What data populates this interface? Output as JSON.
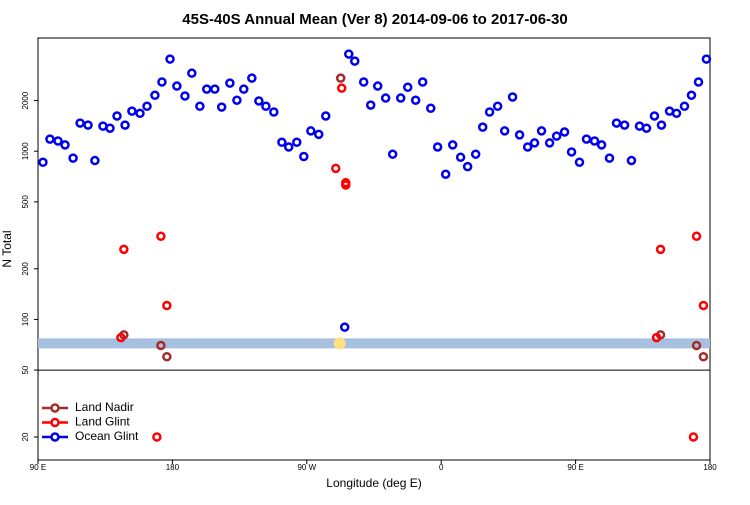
{
  "chart_data": {
    "type": "scatter",
    "title": "45S-40S Annual Mean (Ver 8)   2014-09-06 to 2017-06-30",
    "x_label": "Longitude (deg E)",
    "y_label": "N Total",
    "log_y": true,
    "legend_corner": "lower-left",
    "xlim": [
      90,
      540
    ],
    "xticks": [
      {
        "value": 90,
        "label": "90 E"
      },
      180,
      {
        "value": 270,
        "label": "90 W"
      },
      {
        "value": 360,
        "label": "0"
      },
      {
        "value": 450,
        "label": "90 E"
      },
      {
        "value": 540,
        "label": "180"
      }
    ],
    "ylim": [
      14.6,
      4710
    ],
    "yticks": [
      20,
      50,
      100,
      200,
      500,
      1000,
      2000
    ],
    "hline": 50,
    "band": {
      "value": 72,
      "color": "#a8c0e0",
      "marker_x": 292,
      "marker_color": "#ffe080"
    },
    "series": [
      {
        "name": "Land Nadir",
        "color": "#a52a2a",
        "x": [
          147.5,
          172.3,
          176.3,
          292.7,
          506.9,
          531,
          535.6
        ],
        "values": [
          81,
          70,
          60,
          2720,
          81,
          70,
          60
        ]
      },
      {
        "name": "Land Glint",
        "color": "#ff0000",
        "x": [
          145.5,
          147.5,
          172.3,
          176.3,
          169.6,
          289.4,
          293.4,
          296.1,
          296.1,
          504.2,
          506.9,
          531,
          535.6,
          528.9
        ],
        "values": [
          78,
          261,
          312,
          121,
          20,
          790,
          2370,
          650,
          630,
          78,
          261,
          312,
          121,
          20
        ]
      },
      {
        "name": "Ocean Glint",
        "color": "#0000ee",
        "x": [
          93.3,
          98,
          103.4,
          108.1,
          113.5,
          118.2,
          123.5,
          128.1,
          133.5,
          138.2,
          142.9,
          148.3,
          152.9,
          158.3,
          163,
          168.3,
          173,
          178.4,
          183,
          188.4,
          193,
          198.4,
          203,
          208.4,
          213,
          218.5,
          223.2,
          227.8,
          233.2,
          237.9,
          242.6,
          247.9,
          253.3,
          257.9,
          263.3,
          268,
          272.7,
          278,
          282.7,
          295.4,
          298.1,
          302.1,
          308.1,
          312.8,
          317.5,
          322.8,
          327.5,
          332.9,
          337.6,
          342.9,
          347.6,
          353,
          357.6,
          363,
          367.7,
          373,
          377.7,
          383.1,
          387.8,
          392.4,
          397.8,
          402.5,
          407.8,
          412.5,
          417.9,
          422.5,
          427.2,
          432.6,
          437.3,
          442.6,
          447.3,
          452.6,
          457.3,
          462.7,
          467.4,
          472.7,
          477.4,
          482.8,
          487.4,
          492.8,
          497.5,
          502.8,
          507.5,
          512.9,
          517.6,
          522.9,
          527.6,
          532.3,
          537.6
        ],
        "values": [
          860,
          1180,
          1150,
          1090,
          910,
          1470,
          1430,
          880,
          1410,
          1370,
          1620,
          1430,
          1730,
          1680,
          1850,
          2150,
          2580,
          3530,
          2440,
          2130,
          2910,
          1850,
          2340,
          2340,
          1830,
          2540,
          2010,
          2340,
          2720,
          1990,
          1850,
          1710,
          1130,
          1060,
          1130,
          930,
          1320,
          1260,
          1620,
          90,
          3780,
          3430,
          2580,
          1880,
          2440,
          2070,
          960,
          2070,
          2400,
          2010,
          2580,
          1800,
          1060,
          730,
          1090,
          920,
          810,
          960,
          1390,
          1710,
          1850,
          1320,
          2100,
          1250,
          1060,
          1120,
          1320,
          1120,
          1230,
          1300,
          990,
          860,
          1180,
          1150,
          1090,
          910,
          1470,
          1430,
          880,
          1410,
          1370,
          1620,
          1430,
          1730,
          1680,
          1850,
          2150,
          2580,
          3530
        ]
      }
    ]
  }
}
